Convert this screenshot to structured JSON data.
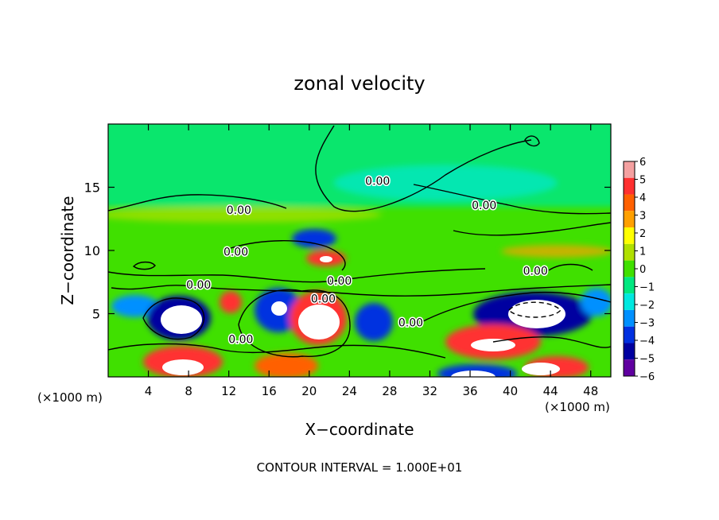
{
  "chart_data": {
    "type": "heatmap",
    "title": "zonal velocity",
    "xlabel": "X−coordinate",
    "ylabel": "Z−coordinate",
    "x_unit_left": "(×1000 m)",
    "x_unit_right": "(×1000 m)",
    "footer": "CONTOUR INTERVAL = 1.000E+01",
    "xlim": [
      0,
      50
    ],
    "ylim": [
      0,
      20
    ],
    "x_ticks": [
      4,
      8,
      12,
      16,
      20,
      24,
      28,
      32,
      36,
      40,
      44,
      48
    ],
    "x_tick_labels": [
      "4",
      "8",
      "12",
      "16",
      "20",
      "24",
      "28",
      "32",
      "36",
      "40",
      "44",
      "48"
    ],
    "y_ticks": [
      5,
      10,
      15
    ],
    "y_tick_labels": [
      "5",
      "10",
      "15"
    ],
    "colorbar": {
      "levels": [
        6,
        5,
        4,
        3,
        2,
        1,
        0,
        -1,
        -2,
        -3,
        -4,
        -5,
        -6
      ],
      "level_labels": [
        "6",
        "5",
        "4",
        "3",
        "2",
        "1",
        "0",
        "−1",
        "−2",
        "−3",
        "−4",
        "−5",
        "−6"
      ],
      "colors": [
        "#f4a0a0",
        "#ff3030",
        "#ff6000",
        "#ffa000",
        "#ffff00",
        "#b0e000",
        "#40e000",
        "#00e880",
        "#00e8e0",
        "#0090ff",
        "#0030e0",
        "#0000a0",
        "#6000a0"
      ]
    },
    "contour_labels": [
      {
        "text": "0.00",
        "x": 26.8,
        "y": 15.5
      },
      {
        "text": "0.00",
        "x": 37.4,
        "y": 13.6
      },
      {
        "text": "0.00",
        "x": 13.0,
        "y": 13.2
      },
      {
        "text": "0.00",
        "x": 12.7,
        "y": 9.9
      },
      {
        "text": "0.00",
        "x": 9.0,
        "y": 7.3
      },
      {
        "text": "0.00",
        "x": 23.0,
        "y": 7.6
      },
      {
        "text": "0.00",
        "x": 21.4,
        "y": 6.2
      },
      {
        "text": "0.00",
        "x": 42.5,
        "y": 8.4
      },
      {
        "text": "0.00",
        "x": 30.1,
        "y": 4.3
      },
      {
        "text": "0.00",
        "x": 13.2,
        "y": 3.0
      }
    ]
  }
}
